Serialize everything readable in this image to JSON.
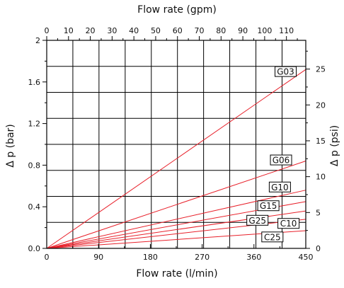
{
  "chart_data": {
    "type": "line",
    "title": "",
    "top_axis": {
      "label": "Flow rate (gpm)",
      "ticks": [
        0,
        10,
        20,
        30,
        40,
        50,
        60,
        70,
        80,
        90,
        100,
        110
      ],
      "minor_step": 5
    },
    "bottom_axis": {
      "label": "Flow rate  (l/min)",
      "ticks": [
        0,
        90,
        180,
        270,
        360,
        450
      ],
      "range": [
        0,
        450
      ]
    },
    "left_axis": {
      "label": "Δ p (bar)",
      "ticks": [
        "0.0",
        "0.4",
        "0.8",
        "1.2",
        "1.6",
        "2"
      ],
      "range": [
        0,
        2
      ]
    },
    "right_axis": {
      "label": "Δ p (psi)",
      "ticks": [
        0,
        5,
        10,
        15,
        20,
        25
      ],
      "psi_per_bar": 14.5038
    },
    "grid": {
      "x_lines_lpm": [
        45.4,
        90.8,
        136.3,
        181.7,
        227.1,
        272.5,
        317.9,
        363.4,
        408.8
      ],
      "y_lines_bar": [
        0.25,
        0.5,
        0.75,
        1.0,
        1.25,
        1.5,
        1.75
      ]
    },
    "series": [
      {
        "name": "G03",
        "x": [
          0,
          450
        ],
        "y": [
          0,
          1.72
        ]
      },
      {
        "name": "G06",
        "x": [
          0,
          450
        ],
        "y": [
          0,
          0.84
        ]
      },
      {
        "name": "G10",
        "x": [
          0,
          450
        ],
        "y": [
          0,
          0.56
        ]
      },
      {
        "name": "G15",
        "x": [
          0,
          450
        ],
        "y": [
          0,
          0.45
        ]
      },
      {
        "name": "G25",
        "x": [
          0,
          450
        ],
        "y": [
          0,
          0.36
        ]
      },
      {
        "name": "C10",
        "x": [
          0,
          450
        ],
        "y": [
          0,
          0.28
        ]
      },
      {
        "name": "C25",
        "x": [
          0,
          450
        ],
        "y": [
          0,
          0.17
        ]
      }
    ],
    "label_positions": [
      {
        "name": "G03",
        "x": 415,
        "y": 1.7
      },
      {
        "name": "G06",
        "x": 407,
        "y": 0.85
      },
      {
        "name": "G10",
        "x": 405,
        "y": 0.59
      },
      {
        "name": "G15",
        "x": 385,
        "y": 0.41
      },
      {
        "name": "G25",
        "x": 366,
        "y": 0.27
      },
      {
        "name": "C10",
        "x": 420,
        "y": 0.24
      },
      {
        "name": "C25",
        "x": 392,
        "y": 0.11
      }
    ],
    "colors": {
      "series": "#e8202a",
      "grid": "#000000"
    }
  }
}
